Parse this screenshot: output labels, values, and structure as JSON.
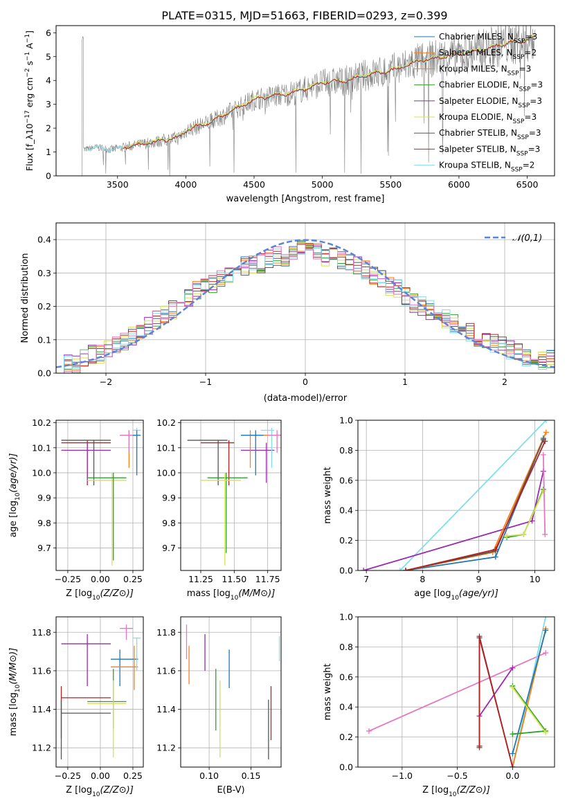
{
  "title": "PLATE=0315, MJD=51663, FIBERID=0293, z=0.399",
  "colors": {
    "blue": "#1f77b4",
    "orange": "#ff7f0e",
    "green": "#2ca02c",
    "purple": "#9c27b0",
    "yellow": "#d4e157",
    "gray": "#555555",
    "red": "#b22222",
    "cyan": "#80deea",
    "pink": "#e377c2",
    "normal": "#5b84d6",
    "data": "#808080"
  },
  "chart_data": [
    {
      "id": "spectrum",
      "type": "line",
      "xlabel": "wavelength [Angstrom, rest frame]",
      "ylabel": "Flux [f_λ10^-17 erg cm^-2 s^-1 A^-1]",
      "xlim": [
        3050,
        6700
      ],
      "ylim": [
        0,
        6.3
      ],
      "xticks": [
        3500,
        4000,
        4500,
        5000,
        5500,
        6000,
        6500
      ],
      "yticks": [
        0,
        1,
        2,
        3,
        4,
        5,
        6
      ],
      "grid": false,
      "legend_position": "top-right",
      "legend": [
        {
          "label": "Chabrier MILES, N_SSP=3",
          "color": "blue"
        },
        {
          "label": "Salpeter MILES, N_SSP=2",
          "color": "orange"
        },
        {
          "label": "Kroupa MILES, N_SSP=3",
          "color": "orange"
        },
        {
          "label": "Chabrier ELODIE, N_SSP=3",
          "color": "green"
        },
        {
          "label": "Salpeter ELODIE, N_SSP=3",
          "color": "purple"
        },
        {
          "label": "Kroupa ELODIE, N_SSP=3",
          "color": "yellow"
        },
        {
          "label": "Chabrier STELIB, N_SSP=3",
          "color": "gray"
        },
        {
          "label": "Salpeter STELIB, N_SSP=3",
          "color": "red"
        },
        {
          "label": "Kroupa STELIB, N_SSP=2",
          "color": "cyan"
        }
      ],
      "model_continuum": [
        [
          3250,
          1.1
        ],
        [
          3350,
          1.2
        ],
        [
          3450,
          1.1
        ],
        [
          3550,
          1.2
        ],
        [
          3650,
          1.3
        ],
        [
          3750,
          1.4
        ],
        [
          3850,
          1.5
        ],
        [
          3950,
          1.6
        ],
        [
          4000,
          1.9
        ],
        [
          4100,
          2.1
        ],
        [
          4200,
          2.3
        ],
        [
          4300,
          2.6
        ],
        [
          4400,
          2.9
        ],
        [
          4500,
          3.2
        ],
        [
          4600,
          3.3
        ],
        [
          4700,
          3.4
        ],
        [
          4800,
          3.5
        ],
        [
          4900,
          3.7
        ],
        [
          5000,
          3.9
        ],
        [
          5100,
          3.95
        ],
        [
          5200,
          4.0
        ],
        [
          5300,
          4.2
        ],
        [
          5400,
          4.3
        ],
        [
          5500,
          4.4
        ],
        [
          5600,
          4.6
        ],
        [
          5700,
          4.8
        ],
        [
          5800,
          4.9
        ],
        [
          5900,
          5.0
        ],
        [
          6000,
          5.1
        ],
        [
          6100,
          5.2
        ],
        [
          6200,
          5.3
        ],
        [
          6300,
          5.5
        ],
        [
          6400,
          5.6
        ],
        [
          6500,
          5.7
        ],
        [
          6550,
          5.8
        ]
      ]
    },
    {
      "id": "residuals",
      "type": "line",
      "xlabel": "(data-model)/error",
      "ylabel": "Normed distribution",
      "xlim": [
        -2.5,
        2.5
      ],
      "ylim": [
        0,
        0.45
      ],
      "xticks": [
        -2,
        -1,
        0,
        1,
        2
      ],
      "yticks": [
        0.0,
        0.1,
        0.2,
        0.3,
        0.4
      ],
      "grid": true,
      "legend_position": "top-right",
      "legend": [
        {
          "label": "𝒩(0,1)",
          "color": "normal"
        }
      ],
      "hist_base": [
        0.02,
        0.025,
        0.03,
        0.045,
        0.055,
        0.06,
        0.07,
        0.085,
        0.09,
        0.11,
        0.12,
        0.14,
        0.16,
        0.18,
        0.19,
        0.21,
        0.23,
        0.25,
        0.26,
        0.27,
        0.28,
        0.3,
        0.31,
        0.32,
        0.33,
        0.33,
        0.34,
        0.35,
        0.35,
        0.36,
        0.37,
        0.36,
        0.36,
        0.35,
        0.35,
        0.34,
        0.33,
        0.32,
        0.31,
        0.29,
        0.28,
        0.26,
        0.25,
        0.23,
        0.21,
        0.2,
        0.19,
        0.17,
        0.16,
        0.15,
        0.13,
        0.12,
        0.11,
        0.1,
        0.09,
        0.08,
        0.07,
        0.06,
        0.05,
        0.05,
        0.04,
        0.04
      ]
    },
    {
      "id": "age-vs-Z",
      "type": "scatter",
      "xlabel": "Z [log10(Z/Z⊙)]",
      "ylabel": "age [log10(age/yr)]",
      "xlim": [
        -0.34,
        0.33
      ],
      "ylim": [
        9.61,
        10.21
      ],
      "xticks": [
        -0.25,
        0.0,
        0.25
      ],
      "yticks": [
        9.7,
        9.8,
        9.9,
        10.0,
        10.1,
        10.2
      ],
      "grid": true,
      "errorbars": [
        {
          "color": "red",
          "x": [
            -0.3,
            0.08
          ],
          "y": [
            9.95,
            10.13
          ],
          "cx": -0.1,
          "cy": 10.12
        },
        {
          "color": "gray",
          "x": [
            -0.3,
            0.08
          ],
          "y": [
            9.95,
            10.13
          ],
          "cx": -0.05,
          "cy": 10.13
        },
        {
          "color": "purple",
          "x": [
            -0.3,
            0.08
          ],
          "y": [
            9.96,
            10.12
          ],
          "cx": -0.1,
          "cy": 10.09
        },
        {
          "color": "yellow",
          "x": [
            -0.1,
            0.2
          ],
          "y": [
            9.63,
            10.0
          ],
          "cx": 0.09,
          "cy": 9.97
        },
        {
          "color": "green",
          "x": [
            -0.1,
            0.2
          ],
          "y": [
            9.65,
            10.0
          ],
          "cx": 0.1,
          "cy": 9.98
        },
        {
          "color": "orange",
          "x": [
            0.15,
            0.29
          ],
          "y": [
            10.02,
            10.17
          ],
          "cx": 0.22,
          "cy": 10.15
        },
        {
          "color": "pink",
          "x": [
            0.15,
            0.29
          ],
          "y": [
            10.08,
            10.17
          ],
          "cx": 0.22,
          "cy": 10.15
        },
        {
          "color": "cyan",
          "x": [
            0.25,
            0.31
          ],
          "y": [
            10.02,
            10.18
          ],
          "cx": 0.28,
          "cy": 10.17
        },
        {
          "color": "blue",
          "x": [
            0.25,
            0.31
          ],
          "y": [
            9.99,
            10.17
          ],
          "cx": 0.28,
          "cy": 10.15
        }
      ]
    },
    {
      "id": "age-vs-mass",
      "type": "scatter",
      "xlabel": "mass [log10(M/M⊙)]",
      "ylabel": "",
      "xlim": [
        11.1,
        11.85
      ],
      "ylim": [
        9.61,
        10.21
      ],
      "xticks": [
        11.25,
        11.5,
        11.75
      ],
      "yticks": [
        9.7,
        9.8,
        9.9,
        10.0,
        10.1,
        10.2
      ],
      "grid": true,
      "errorbars": [
        {
          "color": "gray",
          "x": [
            11.15,
            11.45
          ],
          "y": [
            9.95,
            10.13
          ],
          "cx": 11.38,
          "cy": 10.13
        },
        {
          "color": "red",
          "x": [
            11.25,
            11.5
          ],
          "y": [
            9.95,
            10.13
          ],
          "cx": 11.46,
          "cy": 10.12
        },
        {
          "color": "green",
          "x": [
            11.3,
            11.6
          ],
          "y": [
            9.68,
            10.0
          ],
          "cx": 11.44,
          "cy": 9.98
        },
        {
          "color": "yellow",
          "x": [
            11.25,
            11.55
          ],
          "y": [
            9.63,
            10.0
          ],
          "cx": 11.43,
          "cy": 9.97
        },
        {
          "color": "purple",
          "x": [
            11.55,
            11.8
          ],
          "y": [
            9.96,
            10.12
          ],
          "cx": 11.74,
          "cy": 10.09
        },
        {
          "color": "orange",
          "x": [
            11.55,
            11.75
          ],
          "y": [
            10.02,
            10.17
          ],
          "cx": 11.62,
          "cy": 10.15
        },
        {
          "color": "blue",
          "x": [
            11.55,
            11.72
          ],
          "y": [
            9.99,
            10.17
          ],
          "cx": 11.66,
          "cy": 10.15
        },
        {
          "color": "cyan",
          "x": [
            11.7,
            11.8
          ],
          "y": [
            10.02,
            10.18
          ],
          "cx": 11.78,
          "cy": 10.17
        },
        {
          "color": "pink",
          "x": [
            11.75,
            11.85
          ],
          "y": [
            10.08,
            10.17
          ],
          "cx": 11.82,
          "cy": 10.15
        }
      ]
    },
    {
      "id": "weight-vs-age",
      "type": "line",
      "xlabel": "age [log10(age/yr)]",
      "ylabel": "mass weight",
      "xlim": [
        6.85,
        10.35
      ],
      "ylim": [
        0,
        1.0
      ],
      "xticks": [
        7,
        8,
        9,
        10
      ],
      "yticks": [
        0.0,
        0.2,
        0.4,
        0.6,
        0.8,
        1.0
      ],
      "grid": true,
      "series": [
        {
          "color": "cyan",
          "points": [
            [
              7.6,
              0.0
            ],
            [
              10.2,
              1.0
            ]
          ]
        },
        {
          "color": "purple",
          "points": [
            [
              6.95,
              0.0
            ],
            [
              9.95,
              0.33
            ],
            [
              10.15,
              0.66
            ]
          ]
        },
        {
          "color": "blue",
          "points": [
            [
              7.7,
              0.0
            ],
            [
              9.3,
              0.09
            ],
            [
              10.15,
              0.88
            ]
          ]
        },
        {
          "color": "orange",
          "points": [
            [
              7.7,
              0.0
            ],
            [
              9.25,
              0.12
            ],
            [
              10.2,
              0.92
            ]
          ]
        },
        {
          "color": "gray",
          "points": [
            [
              7.7,
              0.0
            ],
            [
              9.3,
              0.13
            ],
            [
              10.15,
              0.87
            ]
          ]
        },
        {
          "color": "red",
          "points": [
            [
              7.7,
              0.0
            ],
            [
              9.3,
              0.14
            ],
            [
              10.18,
              0.86
            ]
          ]
        },
        {
          "color": "green",
          "points": [
            [
              9.5,
              0.22
            ],
            [
              9.8,
              0.24
            ],
            [
              10.15,
              0.54
            ]
          ]
        },
        {
          "color": "yellow",
          "points": [
            [
              9.5,
              0.23
            ],
            [
              9.8,
              0.24
            ],
            [
              10.15,
              0.53
            ]
          ]
        },
        {
          "color": "pink",
          "points": [
            [
              10.15,
              0.77
            ],
            [
              10.18,
              0.24
            ]
          ]
        }
      ]
    },
    {
      "id": "mass-vs-Z",
      "type": "scatter",
      "xlabel": "Z [log10(Z/Z⊙)]",
      "ylabel": "mass [log10(M/M⊙)]",
      "xlim": [
        -0.34,
        0.33
      ],
      "ylim": [
        11.1,
        11.88
      ],
      "xticks": [
        -0.25,
        0.0,
        0.25
      ],
      "yticks": [
        11.2,
        11.4,
        11.6,
        11.8
      ],
      "grid": true,
      "errorbars": [
        {
          "color": "purple",
          "x": [
            -0.3,
            0.08
          ],
          "y": [
            11.52,
            11.79
          ],
          "cx": -0.1,
          "cy": 11.74
        },
        {
          "color": "blue",
          "x": [
            0.08,
            0.29
          ],
          "y": [
            11.52,
            11.71
          ],
          "cx": 0.15,
          "cy": 11.66
        },
        {
          "color": "orange",
          "x": [
            0.08,
            0.29
          ],
          "y": [
            11.5,
            11.73
          ],
          "cx": 0.26,
          "cy": 11.62
        },
        {
          "color": "cyan",
          "x": [
            0.25,
            0.31
          ],
          "y": [
            11.6,
            11.77
          ],
          "cx": 0.28,
          "cy": 11.77
        },
        {
          "color": "pink",
          "x": [
            0.15,
            0.25
          ],
          "y": [
            11.76,
            11.84
          ],
          "cx": 0.2,
          "cy": 11.82
        },
        {
          "color": "red",
          "x": [
            -0.3,
            0.08
          ],
          "y": [
            11.25,
            11.52
          ],
          "cx": -0.3,
          "cy": 11.46
        },
        {
          "color": "gray",
          "x": [
            -0.3,
            0.08
          ],
          "y": [
            11.14,
            11.45
          ],
          "cx": -0.3,
          "cy": 11.38
        },
        {
          "color": "green",
          "x": [
            -0.1,
            0.2
          ],
          "y": [
            11.3,
            11.61
          ],
          "cx": 0.1,
          "cy": 11.44
        },
        {
          "color": "yellow",
          "x": [
            -0.1,
            0.2
          ],
          "y": [
            11.15,
            11.55
          ],
          "cx": 0.1,
          "cy": 11.43
        }
      ]
    },
    {
      "id": "mass-vs-EBV",
      "type": "scatter",
      "xlabel": "E(B-V)",
      "ylabel": "",
      "xlim": [
        0.066,
        0.186
      ],
      "ylim": [
        11.1,
        11.88
      ],
      "xticks": [
        0.1,
        0.15
      ],
      "yticks": [
        11.2,
        11.4,
        11.6,
        11.8
      ],
      "grid": true,
      "errorbars": [
        {
          "color": "pink",
          "x": [
            0.073,
            0.073
          ],
          "y": [
            11.66,
            11.84
          ]
        },
        {
          "color": "orange",
          "x": [
            0.076,
            0.076
          ],
          "y": [
            11.53,
            11.73
          ]
        },
        {
          "color": "purple",
          "x": [
            0.095,
            0.095
          ],
          "y": [
            11.6,
            11.79
          ]
        },
        {
          "color": "green",
          "x": [
            0.108,
            0.108
          ],
          "y": [
            11.29,
            11.61
          ]
        },
        {
          "color": "yellow",
          "x": [
            0.113,
            0.113
          ],
          "y": [
            11.15,
            11.55
          ]
        },
        {
          "color": "blue",
          "x": [
            0.124,
            0.124
          ],
          "y": [
            11.51,
            11.71
          ]
        },
        {
          "color": "gray",
          "x": [
            0.171,
            0.171
          ],
          "y": [
            11.14,
            11.45
          ]
        },
        {
          "color": "red",
          "x": [
            0.174,
            0.174
          ],
          "y": [
            11.24,
            11.52
          ]
        },
        {
          "color": "cyan",
          "x": [
            0.184,
            0.184
          ],
          "y": [
            11.65,
            11.78
          ]
        }
      ]
    },
    {
      "id": "weight-vs-Z",
      "type": "line",
      "xlabel": "Z [log10(Z/Z⊙)]",
      "ylabel": "mass weight",
      "xlim": [
        -1.4,
        0.38
      ],
      "ylim": [
        0,
        1.0
      ],
      "xticks": [
        -1.0,
        -0.5,
        0.0
      ],
      "yticks": [
        0.0,
        0.2,
        0.4,
        0.6,
        0.8,
        1.0
      ],
      "grid": true,
      "series": [
        {
          "color": "pink",
          "points": [
            [
              -1.3,
              0.24
            ],
            [
              0.3,
              0.76
            ]
          ]
        },
        {
          "color": "purple",
          "points": [
            [
              -0.3,
              0.34
            ],
            [
              0.0,
              0.66
            ]
          ]
        },
        {
          "color": "cyan",
          "points": [
            [
              0.0,
              0.0
            ],
            [
              0.3,
              1.0
            ]
          ]
        },
        {
          "color": "orange",
          "points": [
            [
              0.0,
              0.0
            ],
            [
              0.3,
              0.92
            ]
          ]
        },
        {
          "color": "blue",
          "points": [
            [
              0.0,
              0.09
            ],
            [
              0.3,
              0.91
            ]
          ]
        },
        {
          "color": "gray",
          "points": [
            [
              -0.3,
              0.13
            ],
            [
              -0.3,
              0.87
            ],
            [
              0.0,
              0.0
            ]
          ]
        },
        {
          "color": "red",
          "points": [
            [
              -0.3,
              0.14
            ],
            [
              -0.3,
              0.86
            ],
            [
              0.0,
              0.0
            ]
          ]
        },
        {
          "color": "green",
          "points": [
            [
              0.0,
              0.54
            ],
            [
              0.3,
              0.24
            ],
            [
              0.0,
              0.22
            ]
          ]
        },
        {
          "color": "yellow",
          "points": [
            [
              0.0,
              0.53
            ],
            [
              0.3,
              0.23
            ]
          ]
        }
      ]
    }
  ]
}
